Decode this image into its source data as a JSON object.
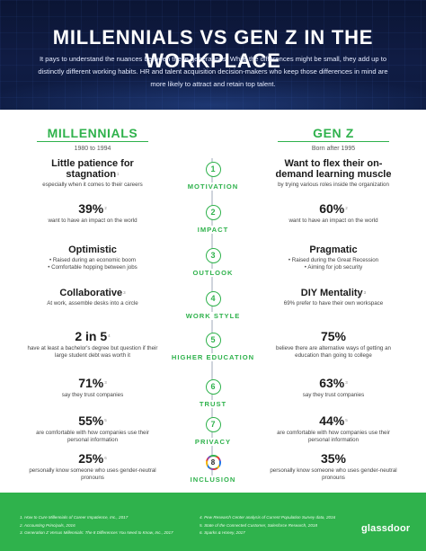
{
  "header": {
    "title": "MILLENNIALS VS GEN Z IN THE WORKPLACE",
    "intro": "It pays to understand the nuances between these generations. While the differences might be small, they add up to distinctly different working habits. HR and talent acquisition decision-makers who keep those differences in mind are more likely to attract and retain top talent."
  },
  "columns": {
    "left": {
      "title": "MILLENNIALS",
      "sub": "1980 to 1994"
    },
    "right": {
      "title": "GEN Z",
      "sub": "Born after 1995"
    }
  },
  "rows": [
    {
      "num": "1",
      "label": "MOTIVATION",
      "left": {
        "head": "Little patience for stagnation",
        "ref": "1",
        "desc": "especially when it comes to their careers"
      },
      "right": {
        "head": "Want to flex their on-demand learning muscle",
        "ref": "",
        "desc": "by trying various roles inside the organization"
      }
    },
    {
      "num": "2",
      "label": "IMPACT",
      "left": {
        "head": "39%",
        "ref": "2",
        "desc": "want to have an impact on the world"
      },
      "right": {
        "head": "60%",
        "ref": "2",
        "desc": "want to have an impact on the world"
      }
    },
    {
      "num": "3",
      "label": "OUTLOOK",
      "left": {
        "head": "Optimistic",
        "ref": "",
        "desc": "• Raised during an economic boom\n• Comfortable hopping between jobs"
      },
      "right": {
        "head": "Pragmatic",
        "ref": "",
        "desc": "• Raised during the Great Recession\n• Aiming for job security"
      }
    },
    {
      "num": "4",
      "label": "WORK STYLE",
      "left": {
        "head": "Collaborative",
        "ref": "3",
        "desc": "At work, assemble desks into a circle"
      },
      "right": {
        "head": "DIY Mentality",
        "ref": "3",
        "desc": "69% prefer to have their own workspace"
      }
    },
    {
      "num": "5",
      "label": "HIGHER EDUCATION",
      "left": {
        "head": "2 in 5",
        "ref": "4",
        "desc": "have at least a bachelor's degree but question if their large student debt was worth it"
      },
      "right": {
        "head": "75%",
        "ref": "",
        "desc": "believe there are alternative ways of getting an education than going to college"
      }
    },
    {
      "num": "6",
      "label": "TRUST",
      "left": {
        "head": "71%",
        "ref": "3",
        "desc": "say they trust companies"
      },
      "right": {
        "head": "63%",
        "ref": "3",
        "desc": "say they trust companies"
      }
    },
    {
      "num": "7",
      "label": "PRIVACY",
      "left": {
        "head": "55%",
        "ref": "5",
        "desc": "are comfortable with how companies use their personal information"
      },
      "right": {
        "head": "44%",
        "ref": "5",
        "desc": "are comfortable with how companies use their personal information"
      }
    },
    {
      "num": "8",
      "label": "INCLUSION",
      "left": {
        "head": "25%",
        "ref": "6",
        "desc": "personally know someone who uses gender-neutral pronouns"
      },
      "right": {
        "head": "35%",
        "ref": "",
        "desc": "personally know someone who uses gender-neutral pronouns"
      }
    }
  ],
  "footer": {
    "refs_left": [
      "1. How to Cure Millennials of Career Impatience, Inc., 2017",
      "2. Accounting Principals, 2016",
      "3. Generation Z Versus Millennials: The 8 Differences You Need to Know, Inc., 2017"
    ],
    "refs_right": [
      "4. Pew Research Center analysis of Current Population Survey data, 2016",
      "5. State of the Connected Customer, Salesforce Research, 2018",
      "6. Sparks & Honey, 2017"
    ],
    "logo": "glassdoor"
  },
  "colors": {
    "accent": "#2fb24c",
    "header_bg": "#0d1a3f"
  }
}
